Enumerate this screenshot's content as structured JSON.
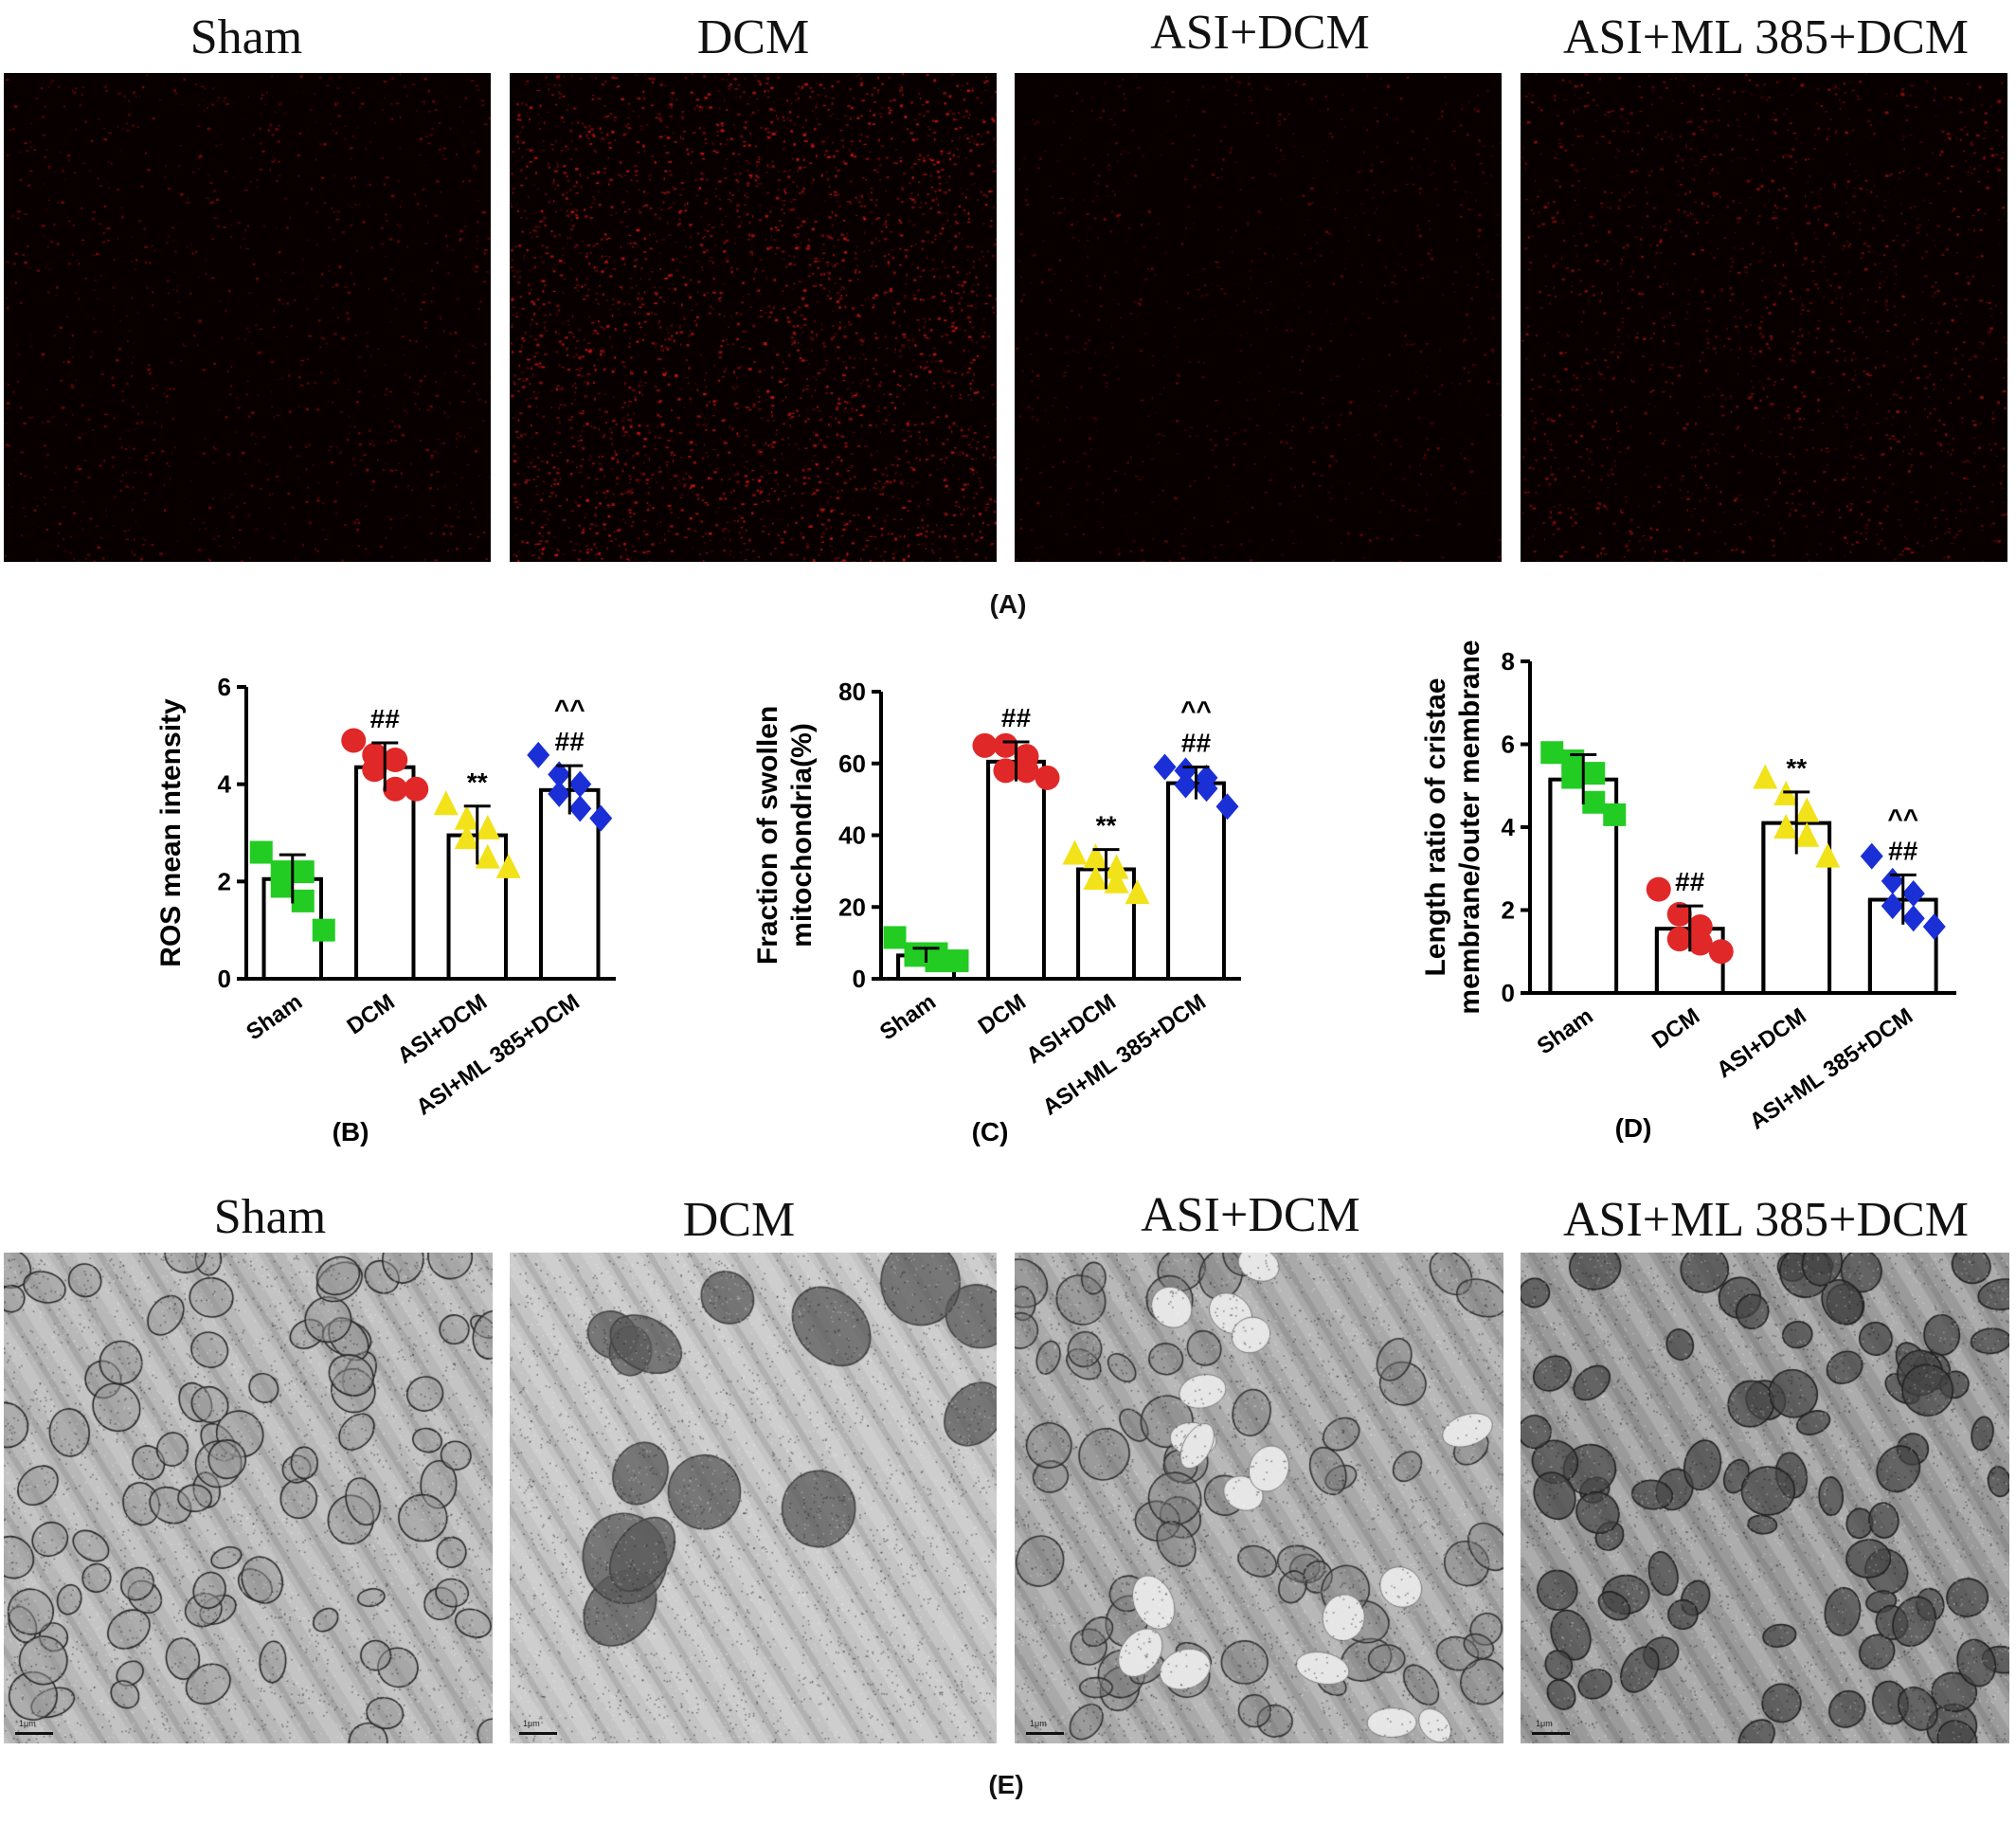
{
  "figure_a": {
    "label": "(A)",
    "panels": [
      {
        "title": "Sham",
        "density": 0.25,
        "color": "#cc1010"
      },
      {
        "title": "DCM",
        "density": 1.0,
        "color": "#e01818"
      },
      {
        "title": "ASI+DCM",
        "density": 0.15,
        "color": "#b00e0e"
      },
      {
        "title": "ASI+ML 385+DCM",
        "density": 0.45,
        "color": "#d01414"
      }
    ]
  },
  "figure_e": {
    "label": "(E)",
    "scale_bar_label": "1μm",
    "panels": [
      {
        "title": "Sham",
        "tone": "light"
      },
      {
        "title": "DCM",
        "tone": "swollen"
      },
      {
        "title": "ASI+DCM",
        "tone": "medium"
      },
      {
        "title": "ASI+ML 385+DCM",
        "tone": "dark"
      }
    ]
  },
  "chart_data": [
    {
      "type": "bar",
      "panel_label": "(B)",
      "ylabel": "ROS mean intensity",
      "ylabel_lines": [
        "ROS mean intensity"
      ],
      "ylim": [
        0,
        6
      ],
      "yticks": [
        0,
        2,
        4,
        6
      ],
      "categories": [
        "Sham",
        "DCM",
        "ASI+DCM",
        "ASI+ML 385+DCM"
      ],
      "values": [
        2.05,
        4.35,
        2.95,
        3.88
      ],
      "errors": [
        0.5,
        0.5,
        0.6,
        0.5
      ],
      "annotations": [
        [
          ""
        ],
        [
          "##"
        ],
        [
          "**"
        ],
        [
          "^^",
          "##"
        ]
      ],
      "colors": [
        "#22cc22",
        "#e02828",
        "#f2e21a",
        "#1a2fd6"
      ],
      "markers": [
        "square",
        "circle",
        "triangle",
        "diamond"
      ],
      "points": [
        [
          2.6,
          2.2,
          2.2,
          1.9,
          1.6,
          1.0
        ],
        [
          4.9,
          4.6,
          4.5,
          4.3,
          3.9,
          3.9
        ],
        [
          3.6,
          3.3,
          3.1,
          2.9,
          2.5,
          2.3
        ],
        [
          4.6,
          4.2,
          4.0,
          3.8,
          3.5,
          3.3
        ]
      ],
      "grid": false
    },
    {
      "type": "bar",
      "panel_label": "(C)",
      "ylabel": "Fraction of swollen mitochondria(%)",
      "ylabel_lines": [
        "Fraction of swollen",
        "mitochondria(%)"
      ],
      "ylim": [
        0,
        80
      ],
      "yticks": [
        0,
        20,
        40,
        60,
        80
      ],
      "categories": [
        "Sham",
        "DCM",
        "ASI+DCM",
        "ASI+ML 385+DCM"
      ],
      "values": [
        6.5,
        60.5,
        30.5,
        54.5
      ],
      "errors": [
        2.0,
        5.5,
        5.5,
        4.5
      ],
      "annotations": [
        [
          ""
        ],
        [
          "##"
        ],
        [
          "**"
        ],
        [
          "^^",
          "##"
        ]
      ],
      "colors": [
        "#22cc22",
        "#e02828",
        "#f2e21a",
        "#1a2fd6"
      ],
      "markers": [
        "square",
        "circle",
        "triangle",
        "diamond"
      ],
      "points": [
        [
          11.5,
          7.0,
          7.0,
          6.5,
          5.0,
          5.0
        ],
        [
          65.0,
          65.0,
          62.0,
          58.0,
          58.0,
          56.0
        ],
        [
          35.0,
          34.0,
          31.0,
          28.0,
          27.0,
          24.0
        ],
        [
          59.0,
          58.0,
          56.0,
          54.0,
          53.0,
          48.0
        ]
      ],
      "grid": false
    },
    {
      "type": "bar",
      "panel_label": "(D)",
      "ylabel": "Length ratio of cristae membrane/outer membrane",
      "ylabel_lines": [
        "Length ratio of cristae",
        "membrane/outer membrane"
      ],
      "ylim": [
        0,
        8
      ],
      "yticks": [
        0,
        2,
        4,
        6,
        8
      ],
      "categories": [
        "Sham",
        "DCM",
        "ASI+DCM",
        "ASI+ML 385+DCM"
      ],
      "values": [
        5.15,
        1.55,
        4.1,
        2.25
      ],
      "errors": [
        0.6,
        0.55,
        0.75,
        0.6
      ],
      "annotations": [
        [
          ""
        ],
        [
          "##"
        ],
        [
          "**"
        ],
        [
          "^^",
          "##"
        ]
      ],
      "colors": [
        "#22cc22",
        "#e02828",
        "#f2e21a",
        "#1a2fd6"
      ],
      "markers": [
        "square",
        "circle",
        "triangle",
        "diamond"
      ],
      "points": [
        [
          5.8,
          5.6,
          5.3,
          5.2,
          4.6,
          4.3
        ],
        [
          2.5,
          1.9,
          1.6,
          1.3,
          1.2,
          1.0
        ],
        [
          5.2,
          4.8,
          4.4,
          4.0,
          3.8,
          3.3
        ],
        [
          3.3,
          2.7,
          2.4,
          2.1,
          1.8,
          1.6
        ]
      ],
      "grid": false
    }
  ]
}
